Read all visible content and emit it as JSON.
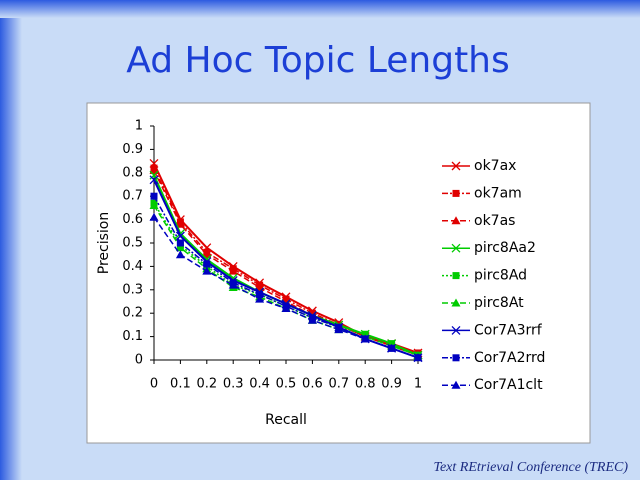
{
  "footer": "Text REtrieval Conference (TREC)",
  "chart_data": {
    "type": "line",
    "title": "Ad Hoc Topic Lengths",
    "x_label": "Recall",
    "y_label": "Precision",
    "x": [
      0,
      0.1,
      0.2,
      0.3,
      0.4,
      0.5,
      0.6,
      0.7,
      0.8,
      0.9,
      1
    ],
    "xlim": [
      0,
      1
    ],
    "xticks": [
      0,
      0.1,
      0.2,
      0.3,
      0.4,
      0.5,
      0.6,
      0.7,
      0.8,
      0.9,
      1
    ],
    "ylim": [
      0,
      1
    ],
    "yticks": [
      0,
      0.1,
      0.2,
      0.3,
      0.4,
      0.5,
      0.6,
      0.7,
      0.8,
      0.9,
      1
    ],
    "grid": false,
    "legend": "right",
    "series": [
      {
        "name": "ok7ax",
        "color": "#e00000",
        "dash": "solid",
        "marker": "x",
        "values": [
          0.84,
          0.6,
          0.48,
          0.4,
          0.33,
          0.27,
          0.21,
          0.16,
          0.1,
          0.07,
          0.03
        ]
      },
      {
        "name": "ok7am",
        "color": "#e00000",
        "dash": "dashdot",
        "marker": "square",
        "values": [
          0.82,
          0.59,
          0.46,
          0.39,
          0.32,
          0.26,
          0.2,
          0.15,
          0.1,
          0.06,
          0.03
        ]
      },
      {
        "name": "ok7as",
        "color": "#e00000",
        "dash": "dashed",
        "marker": "triangle",
        "values": [
          0.81,
          0.58,
          0.45,
          0.38,
          0.31,
          0.25,
          0.19,
          0.15,
          0.1,
          0.06,
          0.02
        ]
      },
      {
        "name": "pirc8Aa2",
        "color": "#00cc00",
        "dash": "solid",
        "marker": "x",
        "values": [
          0.79,
          0.54,
          0.43,
          0.35,
          0.29,
          0.24,
          0.19,
          0.15,
          0.11,
          0.07,
          0.02
        ]
      },
      {
        "name": "pirc8Ad",
        "color": "#00cc00",
        "dash": "dotted",
        "marker": "square",
        "values": [
          0.67,
          0.49,
          0.4,
          0.32,
          0.28,
          0.23,
          0.18,
          0.14,
          0.11,
          0.07,
          0.02
        ]
      },
      {
        "name": "pirc8At",
        "color": "#00cc00",
        "dash": "dashed",
        "marker": "triangle",
        "values": [
          0.66,
          0.48,
          0.39,
          0.31,
          0.27,
          0.22,
          0.17,
          0.13,
          0.1,
          0.06,
          0.02
        ]
      },
      {
        "name": "Cor7A3rrf",
        "color": "#0000c0",
        "dash": "solid",
        "marker": "x",
        "values": [
          0.77,
          0.53,
          0.42,
          0.34,
          0.29,
          0.24,
          0.19,
          0.14,
          0.09,
          0.05,
          0.01
        ]
      },
      {
        "name": "Cor7A2rrd",
        "color": "#0000c0",
        "dash": "dashdot",
        "marker": "square",
        "values": [
          0.7,
          0.5,
          0.41,
          0.33,
          0.28,
          0.23,
          0.18,
          0.14,
          0.09,
          0.05,
          0.01
        ]
      },
      {
        "name": "Cor7A1clt",
        "color": "#0000c0",
        "dash": "dashed",
        "marker": "triangle",
        "values": [
          0.61,
          0.45,
          0.38,
          0.32,
          0.26,
          0.22,
          0.17,
          0.13,
          0.09,
          0.05,
          0.01
        ]
      }
    ]
  }
}
